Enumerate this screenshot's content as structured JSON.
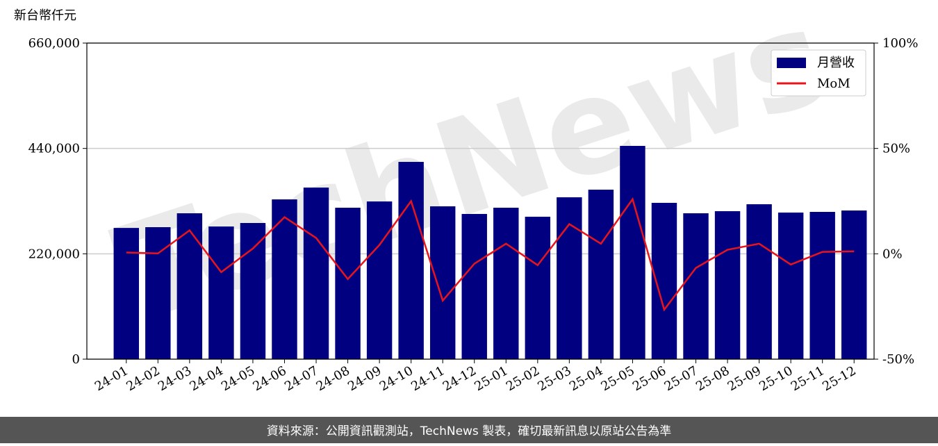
{
  "chart_data": {
    "type": "bar_line",
    "ylabel": "新台幣仟元",
    "watermark": "TechNews",
    "footer": "資料來源：公開資訊觀測站，TechNews 製表，確切最新訊息以原站公告為準",
    "categories": [
      "24-01",
      "24-02",
      "24-03",
      "24-04",
      "24-05",
      "24-06",
      "24-07",
      "24-08",
      "24-09",
      "24-10",
      "24-11",
      "24-12",
      "25-01",
      "25-02",
      "25-03",
      "25-04",
      "25-05",
      "25-06",
      "25-07",
      "25-08",
      "25-09",
      "25-10",
      "25-11",
      "25-12"
    ],
    "series": [
      {
        "name": "月營收",
        "type": "bar",
        "color": "#000080",
        "values": [
          274000,
          275600,
          304600,
          277000,
          284300,
          333600,
          358300,
          316200,
          329300,
          411900,
          319100,
          303200,
          316200,
          297400,
          338000,
          353900,
          445300,
          326400,
          304600,
          309000,
          323500,
          306100,
          307500,
          310400
        ]
      },
      {
        "name": "MoM",
        "type": "line",
        "axis": "y2",
        "color": "#e8141c",
        "values": [
          0.6,
          0.2,
          11.1,
          -8.7,
          2.5,
          17.4,
          7.5,
          -12.0,
          4.2,
          25.0,
          -22.2,
          -4.7,
          4.8,
          -5.4,
          14.1,
          4.8,
          25.9,
          -26.5,
          -6.7,
          1.9,
          4.8,
          -5.1,
          0.9,
          1.2
        ]
      }
    ],
    "ylim": [
      0,
      660000
    ],
    "yticks": [
      0,
      {
        "value": 220000,
        "label": "220,000"
      },
      {
        "value": 440000,
        "label": "440,000"
      },
      {
        "value": 660000,
        "label": "660,000"
      }
    ],
    "y2lim": [
      -50,
      100
    ],
    "y2ticks": [
      {
        "value": -50,
        "label": "-50%"
      },
      {
        "value": 0,
        "label": "0%"
      },
      {
        "value": 50,
        "label": "50%"
      },
      {
        "value": 100,
        "label": "100%"
      }
    ],
    "grid": true,
    "legend": "upper right"
  }
}
